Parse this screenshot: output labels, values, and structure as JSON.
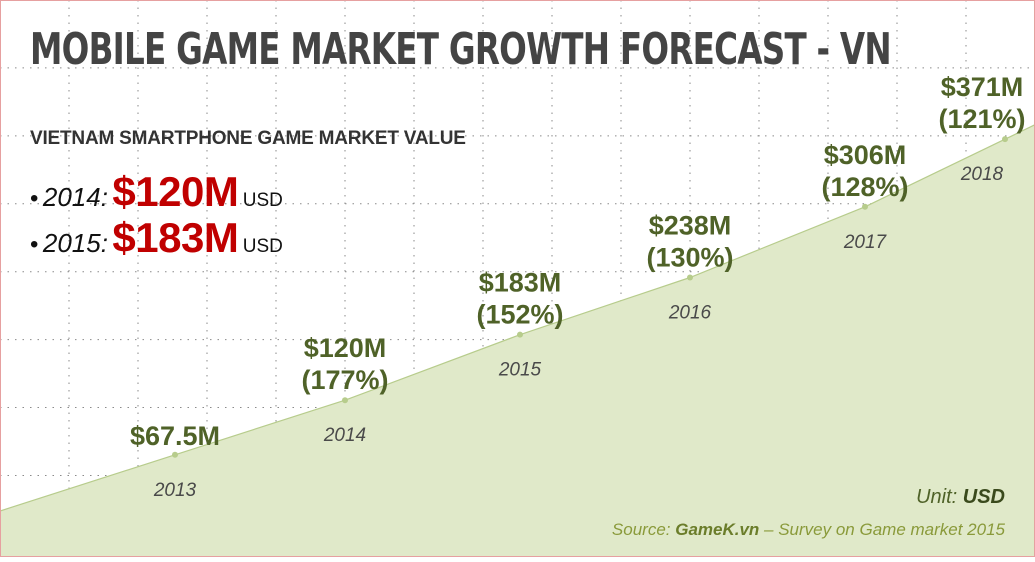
{
  "header": {
    "title": "MOBILE GAME MARKET GROWTH FORECAST - VN",
    "subtitle": "VIETNAM SMARTPHONE GAME MARKET VALUE"
  },
  "highlights": [
    {
      "bullet": "•",
      "year": "2014:",
      "value": "$120M",
      "unit": "USD"
    },
    {
      "bullet": "•",
      "year": "2015:",
      "value": "$183M",
      "unit": "USD"
    }
  ],
  "footer": {
    "unit_label": "Unit: ",
    "unit_value": "USD",
    "source_label": "Source: ",
    "source_value": "GameK.vn",
    "source_rest": " – Survey on Game market 2015"
  },
  "colors": {
    "area_fill": "#e0e9c9",
    "area_line": "#b7cc8c",
    "label_green": "#4f6228",
    "highlight_red": "#c00000",
    "title_gray": "#444444"
  },
  "chart_data": {
    "type": "area",
    "title": "MOBILE GAME MARKET GROWTH FORECAST - VN",
    "subtitle": "VIETNAM SMARTPHONE GAME MARKET VALUE",
    "unit": "USD",
    "x": [
      "2013",
      "2014",
      "2015",
      "2016",
      "2017",
      "2018"
    ],
    "values": [
      67.5,
      120,
      183,
      238,
      306,
      371
    ],
    "value_labels": [
      "$67.5M",
      "$120M",
      "$183M",
      "$238M",
      "$306M",
      "$371M"
    ],
    "growth_labels": [
      "",
      "(177%)",
      "(152%)",
      "(130%)",
      "(128%)",
      "(121%)"
    ],
    "grid": true,
    "legend": "none"
  }
}
